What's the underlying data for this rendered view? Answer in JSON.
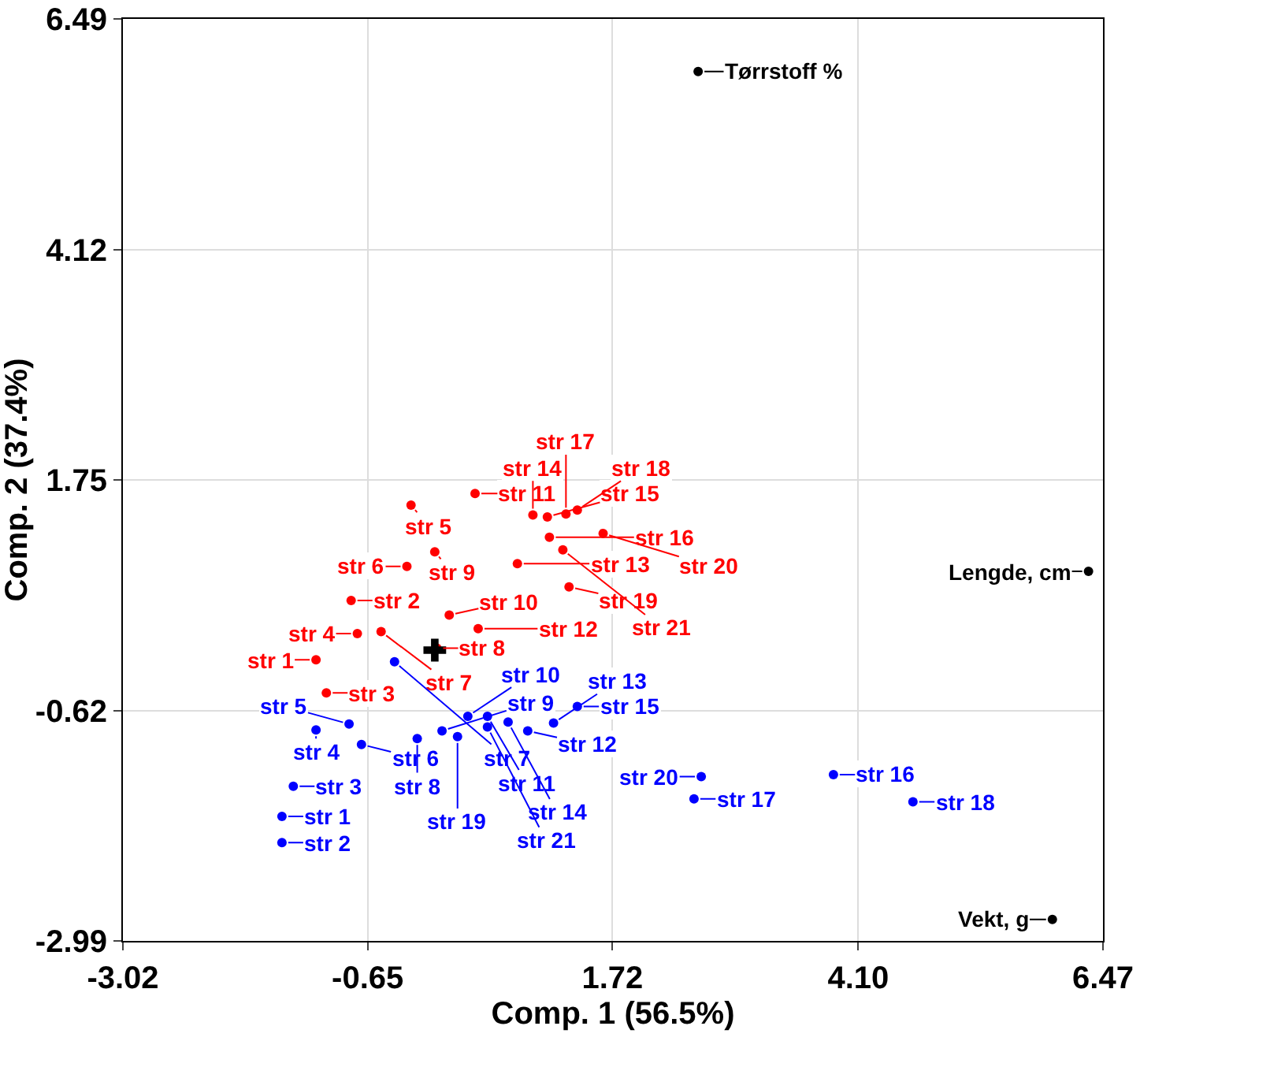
{
  "chart_data": {
    "type": "scatter",
    "xlabel": "Comp. 1 (56.5%)",
    "ylabel": "Comp. 2 (37.4%)",
    "xlim": [
      -3.02,
      6.47
    ],
    "xticks": [
      -3.02,
      -0.65,
      1.72,
      {
        "value": 4.1,
        "label": "4.10"
      },
      6.47
    ],
    "ylim": [
      -2.99,
      6.49
    ],
    "yticks": [
      -2.99,
      -0.62,
      1.75,
      4.12,
      6.49
    ],
    "grid": true,
    "marker": "circle",
    "series": [
      {
        "color": "#ff0000",
        "x": [
          -1.15,
          -0.81,
          -1.05,
          -0.75,
          -0.23,
          -0.27,
          -0.52,
          0.02,
          0.0,
          0.14,
          0.39,
          0.42,
          0.8,
          0.95,
          1.09,
          1.11,
          1.27,
          1.38,
          1.3,
          1.63,
          1.24
        ],
        "values": [
          -0.1,
          0.51,
          -0.44,
          0.17,
          1.49,
          0.86,
          0.19,
          0.02,
          1.01,
          0.36,
          1.61,
          0.22,
          0.89,
          1.39,
          1.37,
          1.16,
          1.4,
          1.44,
          0.65,
          1.2,
          1.03
        ],
        "value_labels": [
          "str 1",
          "str 2",
          "str 3",
          "str 4",
          "str 5",
          "str 6",
          "str 7",
          "str 8",
          "str 9",
          "str 10",
          "str 11",
          "str 12",
          "str 13",
          "str 14",
          "str 15",
          "str 16",
          "str 17",
          "str 18",
          "str 19",
          "str 20",
          "str 21"
        ]
      },
      {
        "color": "#0000ff",
        "x": [
          -1.48,
          -1.48,
          -1.37,
          -1.15,
          -0.83,
          -0.71,
          -0.39,
          -0.17,
          0.07,
          0.32,
          0.51,
          0.9,
          1.15,
          0.71,
          1.38,
          3.86,
          2.51,
          4.63,
          0.22,
          2.58,
          0.51
        ],
        "values": [
          -1.71,
          -1.98,
          -1.4,
          -0.82,
          -0.76,
          -0.97,
          -0.12,
          -0.91,
          -0.83,
          -0.68,
          -0.68,
          -0.83,
          -0.75,
          -0.74,
          -0.58,
          -1.28,
          -1.53,
          -1.56,
          -0.89,
          -1.3,
          -0.79
        ],
        "value_labels": [
          "str 1",
          "str 2",
          "str 3",
          "str 4",
          "str 5",
          "str 6",
          "str 7",
          "str 8",
          "str 9",
          "str 10",
          "str 11",
          "str 12",
          "str 13",
          "str 14",
          "str 15",
          "str 16",
          "str 17",
          "str 18",
          "str 19",
          "str 20",
          "str 21"
        ]
      },
      {
        "color": "#000000",
        "x": [
          2.55,
          6.33,
          5.98
        ],
        "values": [
          5.95,
          0.81,
          -2.77
        ],
        "value_labels": [
          "Tørrstoff %",
          "Lengde, cm",
          "Vekt, g"
        ]
      },
      {
        "color": "#000000",
        "marker": "cross",
        "x": [
          0
        ],
        "values": [
          0
        ]
      }
    ]
  }
}
